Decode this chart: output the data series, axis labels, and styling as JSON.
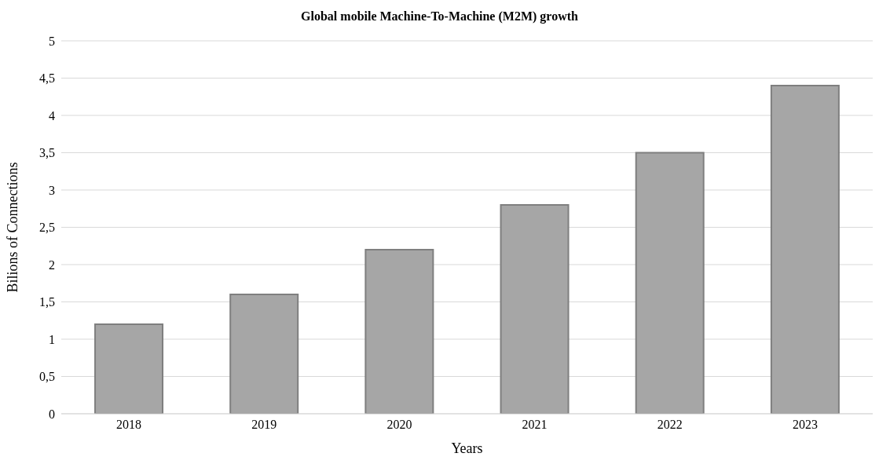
{
  "chart_data": {
    "type": "bar",
    "title": "Global mobile Machine-To-Machine (M2M) growth",
    "xlabel": "Years",
    "ylabel": "Bilions of  Connections",
    "categories": [
      "2018",
      "2019",
      "2020",
      "2021",
      "2022",
      "2023"
    ],
    "values": [
      1.2,
      1.6,
      2.2,
      2.8,
      3.5,
      4.4
    ],
    "color": "#a6a6a6",
    "ylim": [
      0,
      5
    ],
    "yticks": [
      0,
      {
        "value": 0.5,
        "label": "0,5"
      },
      1,
      {
        "value": 1.5,
        "label": "1,5"
      },
      2,
      {
        "value": 2.5,
        "label": "2,5"
      },
      3,
      {
        "value": 3.5,
        "label": "3,5"
      },
      4,
      {
        "value": 4.5,
        "label": "4,5"
      },
      5
    ],
    "grid": "y",
    "legend": false
  }
}
